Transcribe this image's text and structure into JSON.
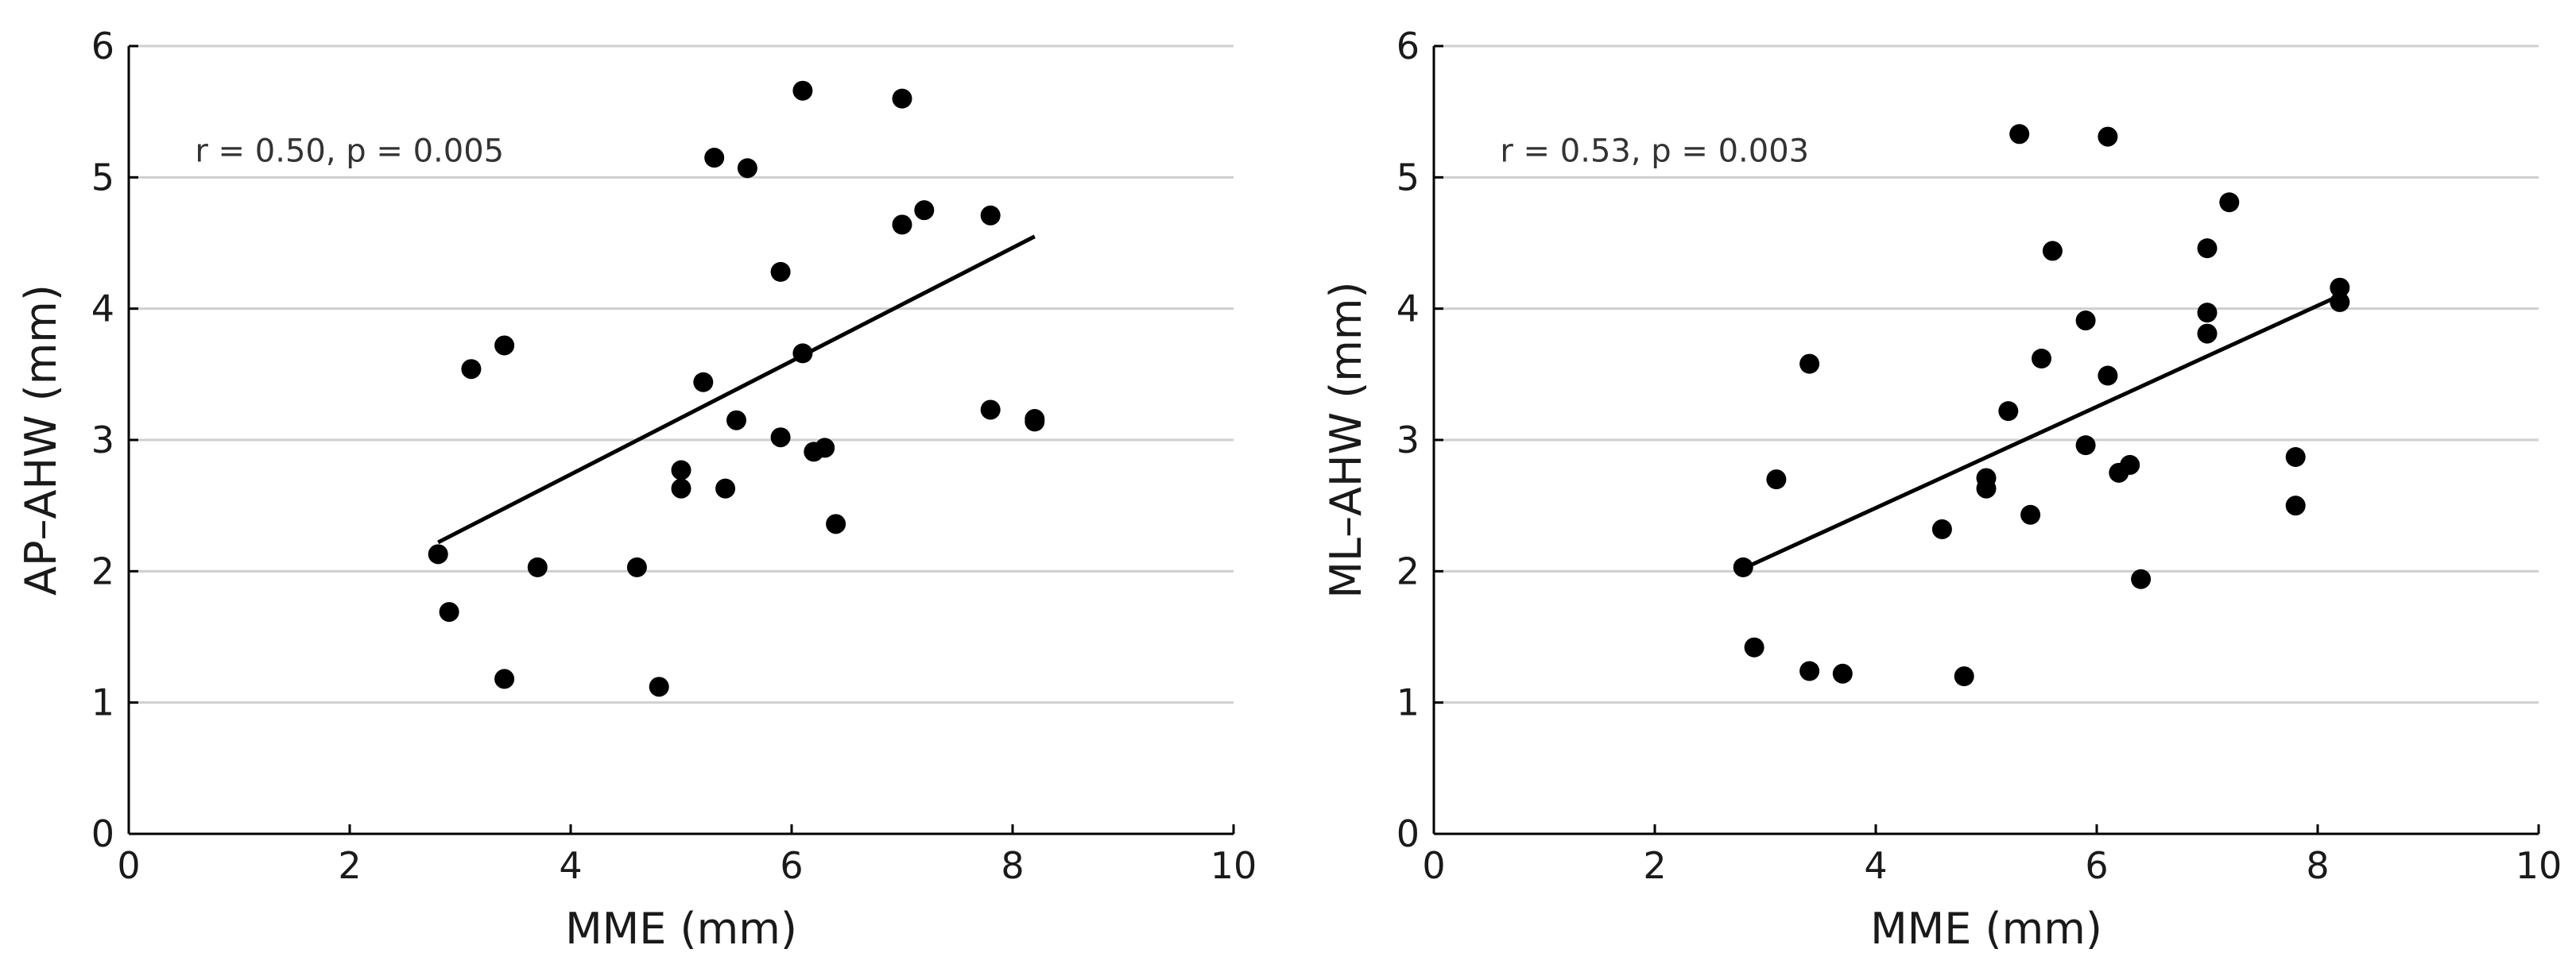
{
  "chart_data": [
    {
      "type": "scatter",
      "xlabel": "MME (mm)",
      "ylabel": "AP–AHW (mm)",
      "xlim": [
        0,
        10
      ],
      "ylim": [
        0,
        6
      ],
      "xticks": [
        "0",
        "2",
        "4",
        "6",
        "8",
        "10"
      ],
      "yticks": [
        "0",
        "1",
        "2",
        "3",
        "4",
        "5",
        "6"
      ],
      "grid": "horizontal",
      "annotation": "r = 0.50, p = 0.005",
      "points": [
        [
          2.8,
          2.13
        ],
        [
          2.9,
          1.69
        ],
        [
          3.1,
          3.54
        ],
        [
          3.4,
          3.72
        ],
        [
          3.4,
          1.18
        ],
        [
          3.7,
          2.03
        ],
        [
          4.6,
          2.03
        ],
        [
          4.8,
          1.12
        ],
        [
          5.0,
          2.77
        ],
        [
          5.0,
          2.63
        ],
        [
          5.2,
          3.44
        ],
        [
          5.3,
          5.15
        ],
        [
          5.4,
          2.63
        ],
        [
          5.5,
          3.15
        ],
        [
          5.6,
          5.07
        ],
        [
          5.9,
          4.28
        ],
        [
          5.9,
          3.02
        ],
        [
          6.1,
          5.66
        ],
        [
          6.1,
          3.66
        ],
        [
          6.2,
          2.91
        ],
        [
          6.3,
          2.94
        ],
        [
          6.4,
          2.36
        ],
        [
          7.0,
          5.6
        ],
        [
          7.0,
          4.64
        ],
        [
          7.2,
          4.75
        ],
        [
          7.8,
          4.71
        ],
        [
          7.8,
          3.23
        ],
        [
          8.2,
          3.16
        ],
        [
          8.2,
          3.14
        ]
      ],
      "fit_line": [
        [
          2.8,
          2.22
        ],
        [
          8.2,
          4.55
        ]
      ]
    },
    {
      "type": "scatter",
      "xlabel": "MME (mm)",
      "ylabel": "ML–AHW (mm)",
      "xlim": [
        0,
        10
      ],
      "ylim": [
        0,
        6
      ],
      "xticks": [
        "0",
        "2",
        "4",
        "6",
        "8",
        "10"
      ],
      "yticks": [
        "0",
        "1",
        "2",
        "3",
        "4",
        "5",
        "6"
      ],
      "grid": "horizontal",
      "annotation": "r = 0.53, p = 0.003",
      "points": [
        [
          2.8,
          2.03
        ],
        [
          2.9,
          1.42
        ],
        [
          3.1,
          2.7
        ],
        [
          3.4,
          3.58
        ],
        [
          3.4,
          1.24
        ],
        [
          3.7,
          1.22
        ],
        [
          4.6,
          2.32
        ],
        [
          4.8,
          1.2
        ],
        [
          5.0,
          2.71
        ],
        [
          5.0,
          2.63
        ],
        [
          5.2,
          3.22
        ],
        [
          5.3,
          5.33
        ],
        [
          5.4,
          2.43
        ],
        [
          5.5,
          3.62
        ],
        [
          5.6,
          4.44
        ],
        [
          5.9,
          3.91
        ],
        [
          5.9,
          2.96
        ],
        [
          6.1,
          5.31
        ],
        [
          6.1,
          3.49
        ],
        [
          6.2,
          2.75
        ],
        [
          6.3,
          2.81
        ],
        [
          6.4,
          1.94
        ],
        [
          7.0,
          4.46
        ],
        [
          7.0,
          3.97
        ],
        [
          7.0,
          3.81
        ],
        [
          7.2,
          4.81
        ],
        [
          7.8,
          2.87
        ],
        [
          7.8,
          2.5
        ],
        [
          8.2,
          4.16
        ],
        [
          8.2,
          4.05
        ]
      ],
      "fit_line": [
        [
          2.8,
          2.02
        ],
        [
          8.2,
          4.1
        ]
      ]
    }
  ]
}
